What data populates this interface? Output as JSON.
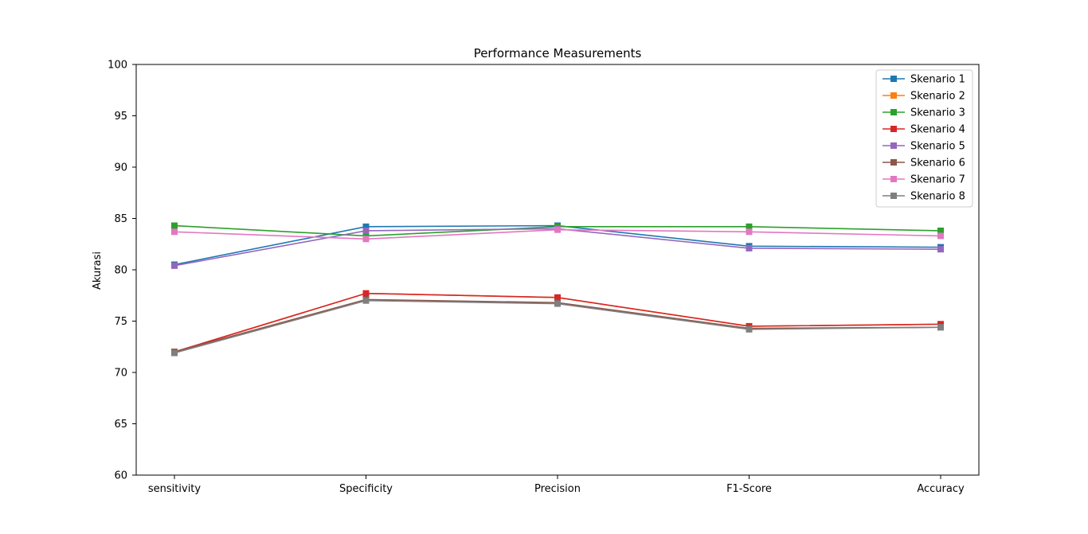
{
  "chart_data": {
    "type": "line",
    "title": "Performance Measurements",
    "xlabel": "",
    "ylabel": "Akurasi",
    "ylim": [
      60,
      100
    ],
    "yticks": [
      60,
      65,
      70,
      75,
      80,
      85,
      90,
      95,
      100
    ],
    "categories": [
      "sensitivity",
      "Specificity",
      "Precision",
      "F1-Score",
      "Accuracy"
    ],
    "grid": false,
    "legend_position": "top-right",
    "marker": "square",
    "series": [
      {
        "name": "Skenario 1",
        "color": "#1f77b4",
        "values": [
          80.5,
          84.2,
          84.3,
          82.3,
          82.2
        ]
      },
      {
        "name": "Skenario 2",
        "color": "#ff7f0e",
        "values": [
          72.0,
          77.7,
          77.3,
          74.5,
          74.7
        ]
      },
      {
        "name": "Skenario 3",
        "color": "#2ca02c",
        "values": [
          84.3,
          83.3,
          84.2,
          84.2,
          83.8
        ]
      },
      {
        "name": "Skenario 4",
        "color": "#d62728",
        "values": [
          72.0,
          77.7,
          77.3,
          74.5,
          74.7
        ]
      },
      {
        "name": "Skenario 5",
        "color": "#9467bd",
        "values": [
          80.4,
          83.8,
          84.0,
          82.1,
          82.0
        ]
      },
      {
        "name": "Skenario 6",
        "color": "#8c564b",
        "values": [
          72.0,
          77.1,
          76.8,
          74.3,
          74.4
        ]
      },
      {
        "name": "Skenario 7",
        "color": "#e377c2",
        "values": [
          83.7,
          83.0,
          83.9,
          83.7,
          83.3
        ]
      },
      {
        "name": "Skenario 8",
        "color": "#7f7f7f",
        "values": [
          71.9,
          77.0,
          76.7,
          74.2,
          74.4
        ]
      }
    ]
  }
}
